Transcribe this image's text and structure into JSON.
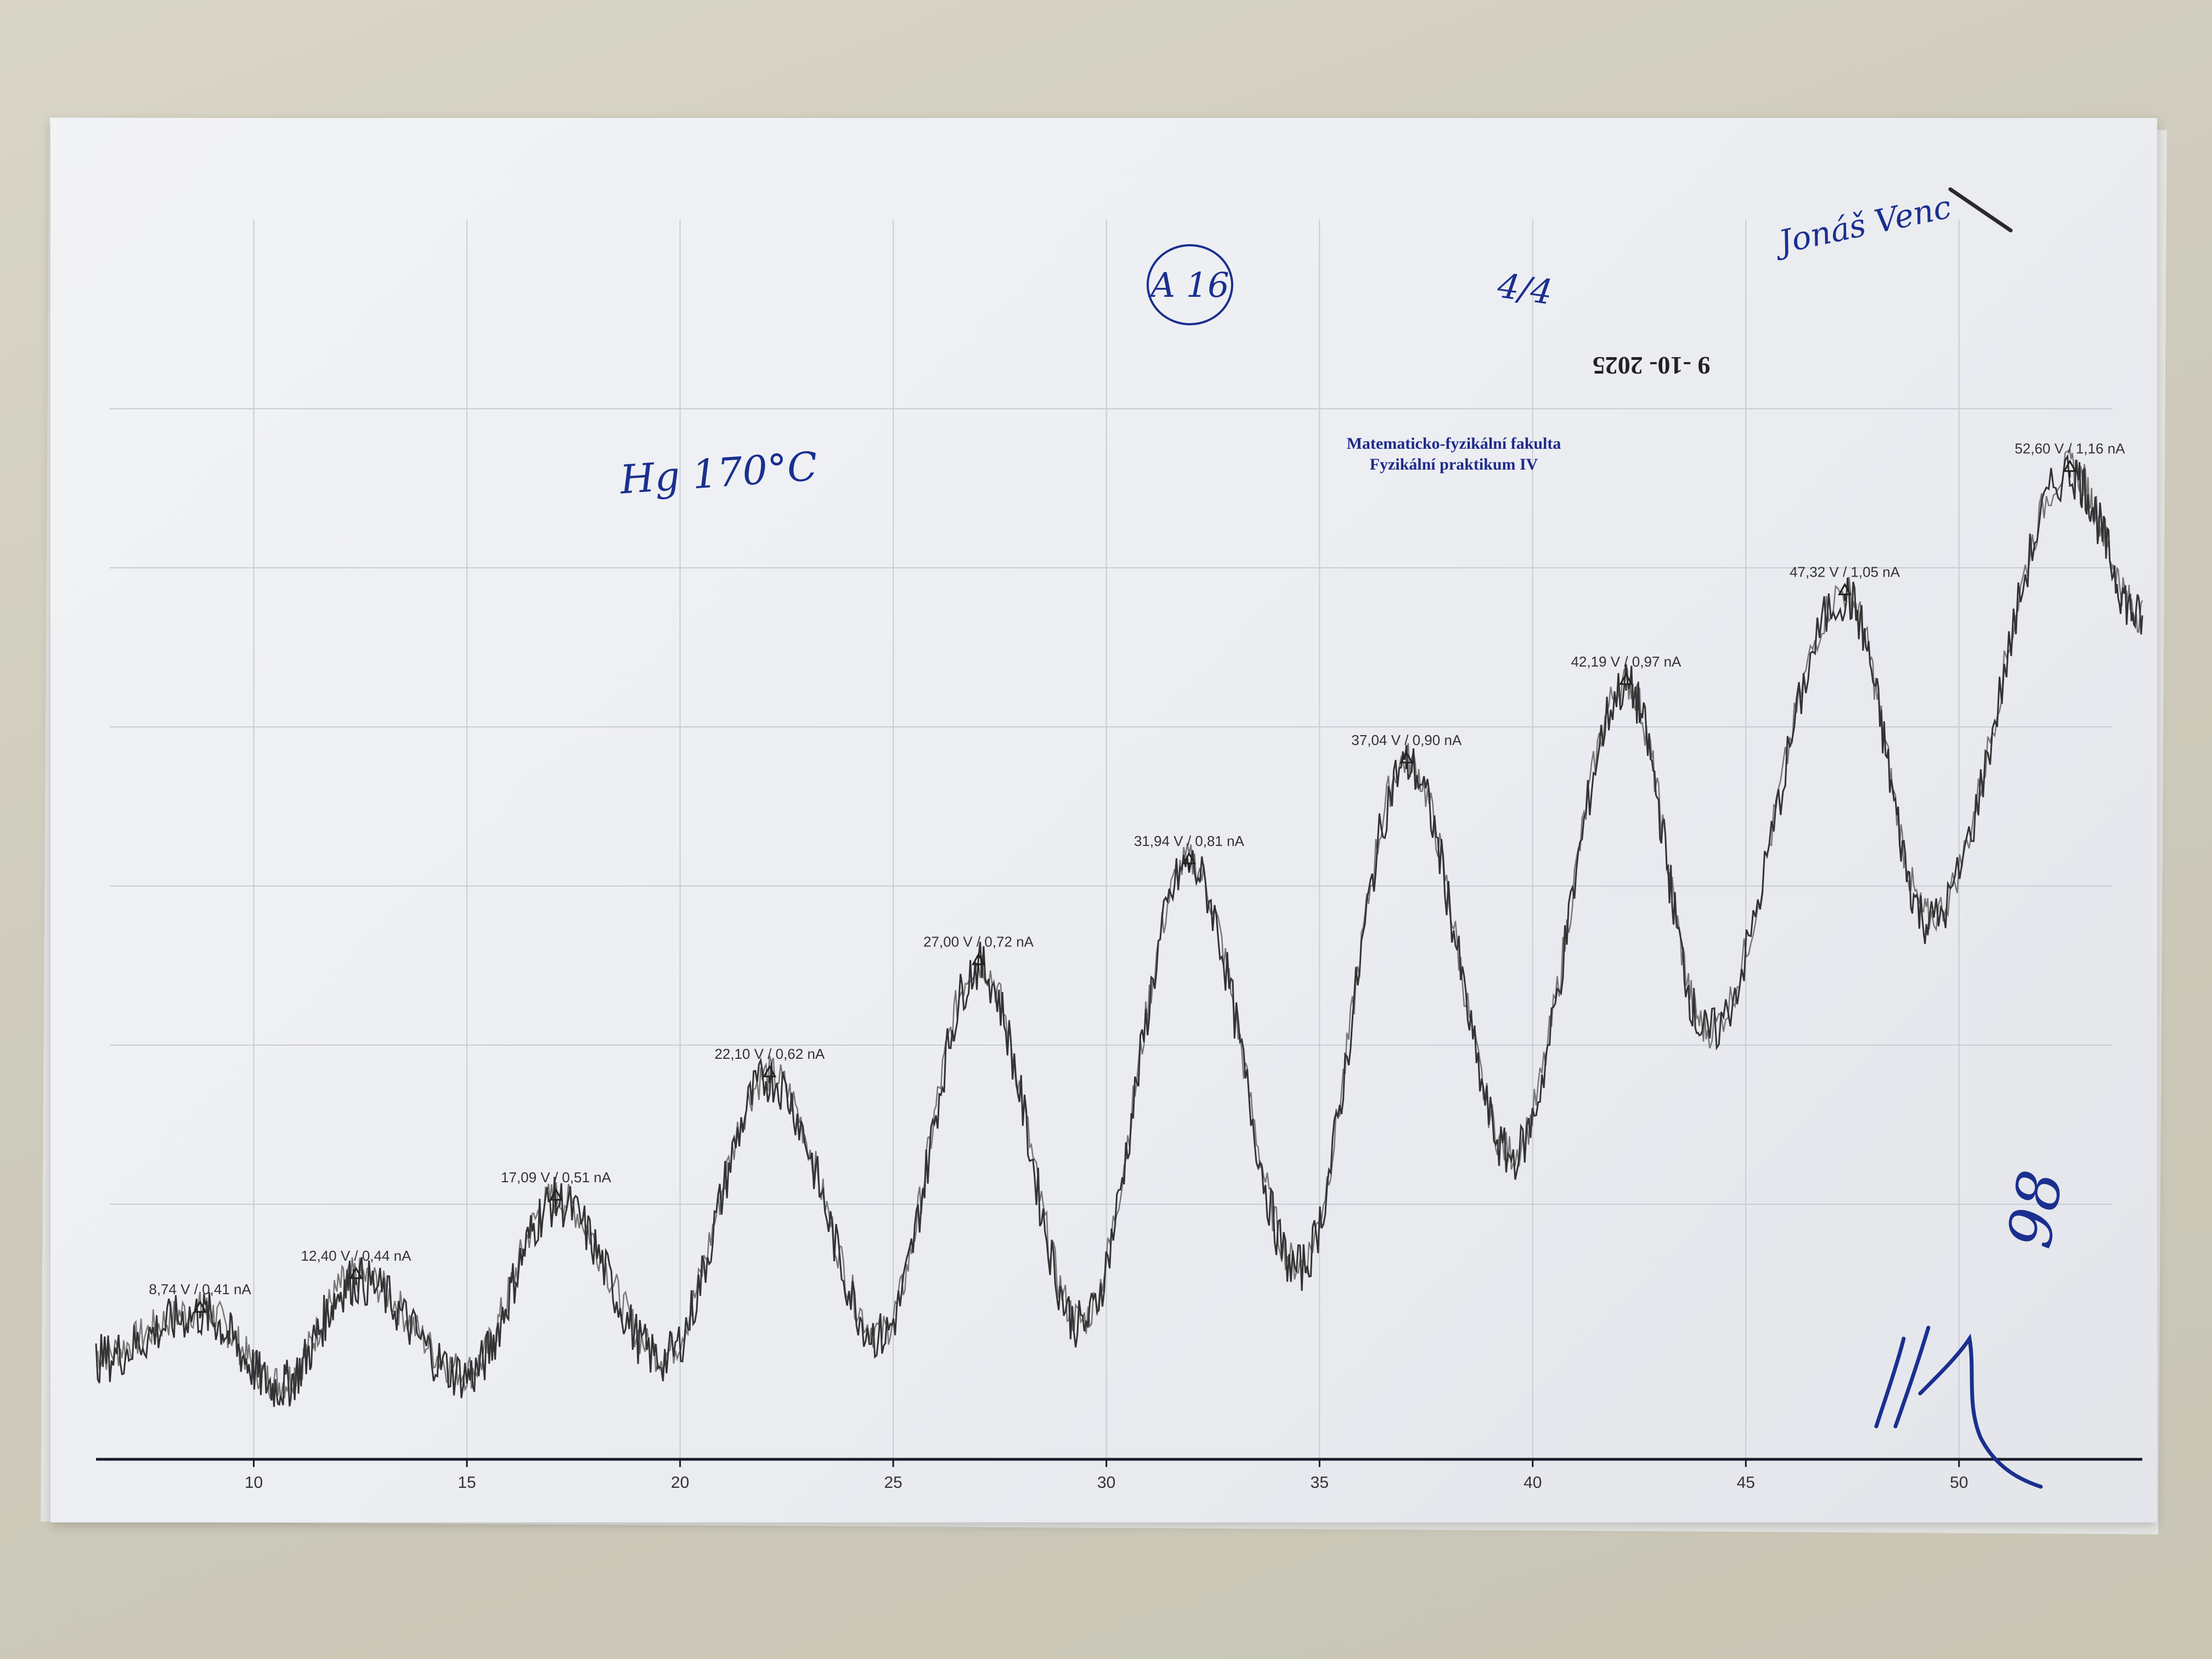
{
  "chart_data": {
    "type": "line",
    "title": "",
    "xlabel": "",
    "ylabel": "",
    "xlim": [
      6.3,
      54.3
    ],
    "ylim": [
      0.3,
      1.22
    ],
    "x_ticks": [
      10,
      15,
      20,
      25,
      30,
      35,
      40,
      45,
      50
    ],
    "x_tick_labels": [
      "10",
      "15",
      "20",
      "25",
      "30",
      "35",
      "40",
      "45",
      "50"
    ],
    "grid": true,
    "series": [
      {
        "values_xy": [
          [
            6.3,
            0.37
          ],
          [
            8.74,
            0.41
          ],
          [
            10.6,
            0.345
          ],
          [
            12.4,
            0.44
          ],
          [
            15.0,
            0.355
          ],
          [
            17.09,
            0.51
          ],
          [
            19.6,
            0.37
          ],
          [
            22.1,
            0.62
          ],
          [
            24.7,
            0.39
          ],
          [
            27.0,
            0.72
          ],
          [
            29.4,
            0.4
          ],
          [
            31.94,
            0.81
          ],
          [
            34.5,
            0.45
          ],
          [
            37.04,
            0.9
          ],
          [
            39.5,
            0.55
          ],
          [
            42.19,
            0.97
          ],
          [
            44.1,
            0.66
          ],
          [
            47.32,
            1.05
          ],
          [
            49.3,
            0.76
          ],
          [
            52.6,
            1.16
          ],
          [
            54.3,
            1.03
          ]
        ]
      }
    ],
    "peaks": [
      {
        "x": 8.74,
        "y": 0.41,
        "label": "8,74 V / 0,41 nA"
      },
      {
        "x": 12.4,
        "y": 0.44,
        "label": "12,40 V / 0,44 nA"
      },
      {
        "x": 17.09,
        "y": 0.51,
        "label": "17,09 V / 0,51 nA"
      },
      {
        "x": 22.1,
        "y": 0.62,
        "label": "22,10 V / 0,62 nA"
      },
      {
        "x": 27.0,
        "y": 0.72,
        "label": "27,00 V / 0,72 nA"
      },
      {
        "x": 31.94,
        "y": 0.81,
        "label": "31,94 V / 0,81 nA"
      },
      {
        "x": 37.04,
        "y": 0.9,
        "label": "37,04 V / 0,90 nA"
      },
      {
        "x": 42.19,
        "y": 0.97,
        "label": "42,19 V / 0,97 nA"
      },
      {
        "x": 47.32,
        "y": 1.05,
        "label": "47,32 V / 1,05 nA"
      },
      {
        "x": 52.6,
        "y": 1.16,
        "label": "52,60 V / 1,16 nA"
      }
    ]
  },
  "stamp": {
    "line1": "Matematicko-fyzikální fakulta",
    "line2": "Fyzikální praktikum IV"
  },
  "date_stamp": "9 -10- 2025",
  "handwritten": {
    "sample": "Hg 170°C",
    "task": "A 16",
    "page": "4/4",
    "name": "Jonáš Venc",
    "grade": "98"
  },
  "colors": {
    "trace": "#333333",
    "axis": "#1a1a2a",
    "grid": "#c8ccd4",
    "ink": "#1b2f8f"
  }
}
